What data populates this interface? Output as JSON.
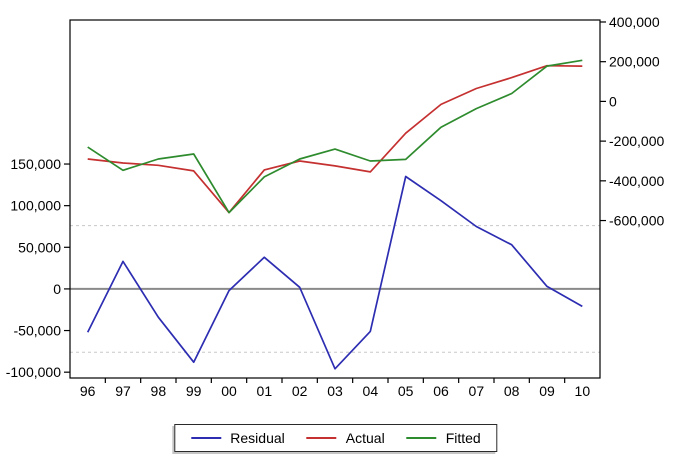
{
  "chart_data": {
    "type": "line",
    "title": "",
    "description": "Residual / Actual / Fitted plot with dual y-axes; residual on left axis, actual and fitted on right axis",
    "x_categories": [
      "96",
      "97",
      "98",
      "99",
      "00",
      "01",
      "02",
      "03",
      "04",
      "05",
      "06",
      "07",
      "08",
      "09",
      "10"
    ],
    "series": [
      {
        "name": "Residual",
        "axis": "left",
        "color": "#2d2db2",
        "values": [
          -52000,
          33000,
          -34000,
          -88000,
          -2000,
          38000,
          2000,
          -96000,
          -51000,
          135000,
          106000,
          75000,
          53000,
          3000,
          -21000
        ]
      },
      {
        "name": "Actual",
        "axis": "right",
        "color": "#c53030",
        "values": [
          -290000,
          -310000,
          -322000,
          -350000,
          -560000,
          -345000,
          -300000,
          -325000,
          -355000,
          -160000,
          -15000,
          65000,
          120000,
          180000,
          178000
        ]
      },
      {
        "name": "Fitted",
        "axis": "right",
        "color": "#2e8b2e",
        "values": [
          -230000,
          -347000,
          -290000,
          -265000,
          -560000,
          -380000,
          -290000,
          -240000,
          -300000,
          -292000,
          -130000,
          -36000,
          40000,
          178000,
          207000
        ]
      }
    ],
    "left_axis": {
      "ticks": [
        150000,
        100000,
        50000,
        0,
        -50000,
        -100000
      ],
      "range": [
        -107000,
        323000
      ]
    },
    "right_axis": {
      "ticks": [
        400000,
        200000,
        0,
        -200000,
        -400000,
        -600000
      ],
      "range": [
        -1393000,
        410000
      ]
    },
    "zero_line_value": 0,
    "band_line_values": [
      76000,
      -76000
    ],
    "grid": "off",
    "legend_position": "bottom"
  },
  "styles": {
    "axis_color": "#000000",
    "zero_line_color": "#8a8a8a",
    "band_line_color": "#c8c8c8",
    "background": "#ffffff"
  }
}
